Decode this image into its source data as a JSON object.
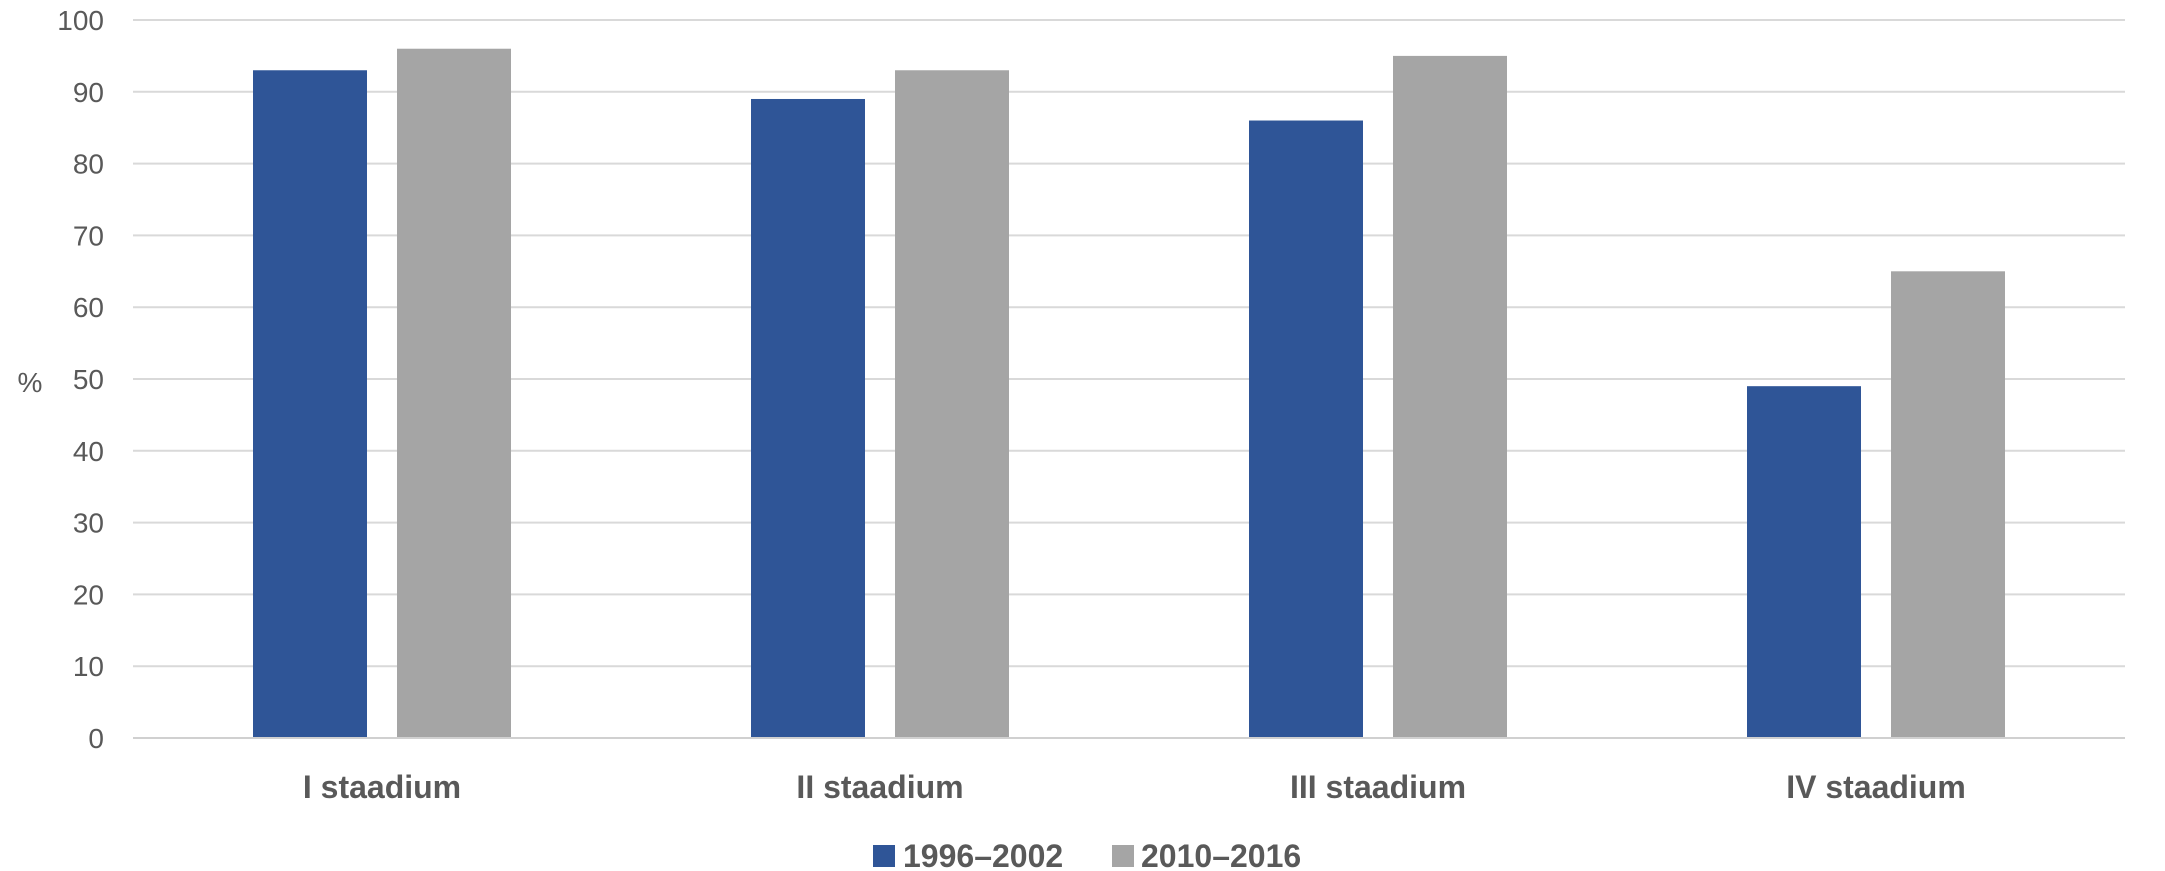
{
  "chart_data": {
    "type": "bar",
    "ylabel": "%",
    "xlabel": "",
    "ylim": [
      0,
      100
    ],
    "yticks": [
      0,
      10,
      20,
      30,
      40,
      50,
      60,
      70,
      80,
      90,
      100
    ],
    "grid": true,
    "legend_position": "bottom",
    "categories": [
      "I staadium",
      "II staadium",
      "III staadium",
      "IV staadium"
    ],
    "series": [
      {
        "name": "1996–2002",
        "color": "#2f5597",
        "values": [
          93,
          89,
          86,
          49
        ]
      },
      {
        "name": "2010–2016",
        "color": "#a5a5a5",
        "values": [
          96,
          93,
          95,
          65
        ]
      }
    ]
  }
}
